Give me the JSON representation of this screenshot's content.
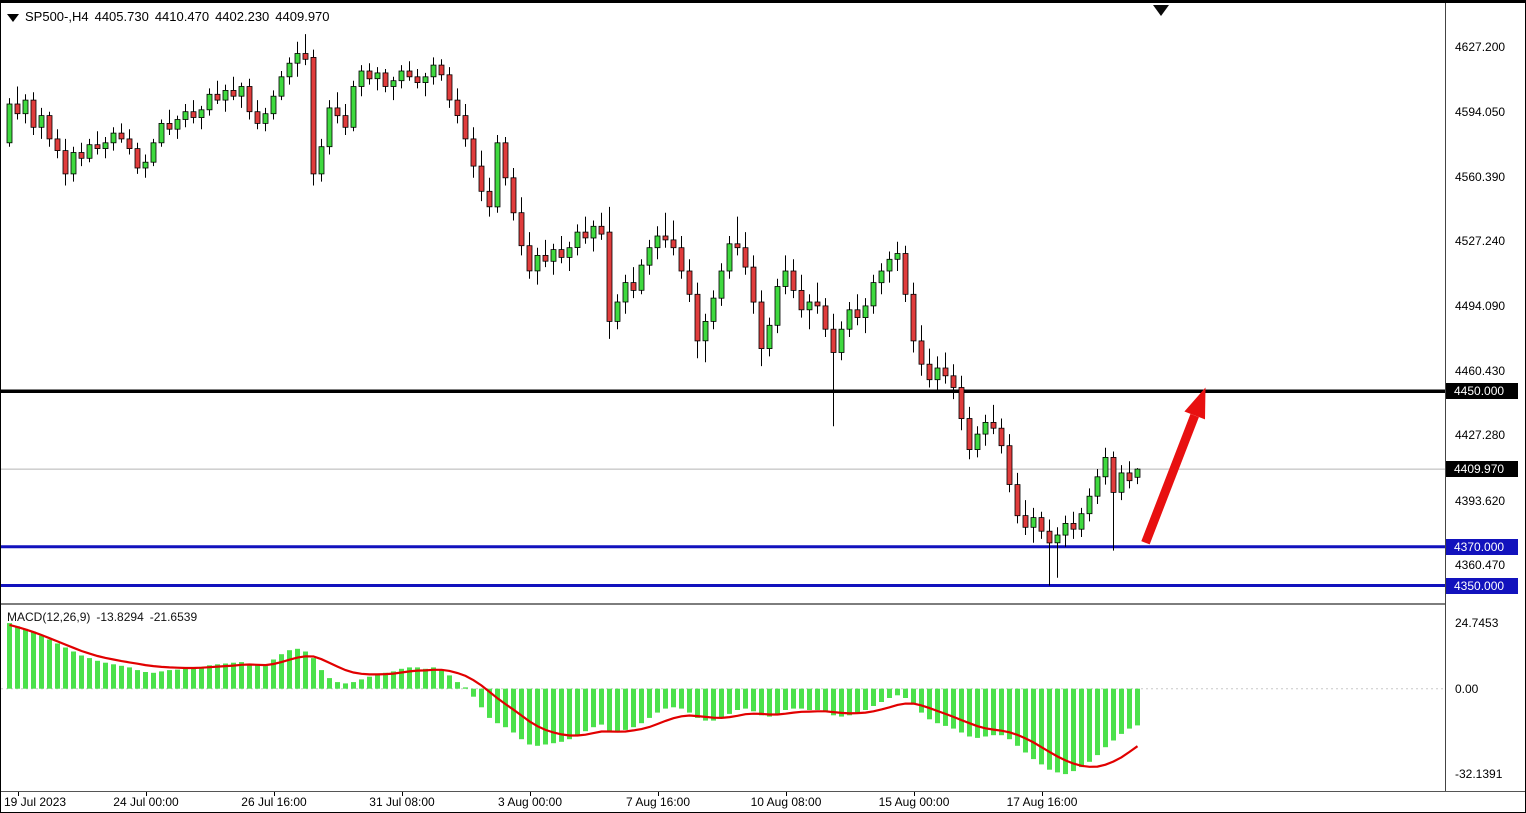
{
  "header": {
    "symbol_period": "SP500-,H4",
    "open": "4405.730",
    "high": "4410.470",
    "low": "4402.230",
    "close": "4409.970"
  },
  "macd_header": {
    "name": "MACD(12,26,9)",
    "main_value": "-13.8294",
    "signal_value": "-21.6539"
  },
  "colors": {
    "background": "#ffffff",
    "up": "#3fd93f",
    "down": "#e03c3c",
    "wick": "#000000",
    "candle_border": "#000000",
    "histogram": "#4be14b",
    "signal": "#e10000",
    "arrow": "#e81010",
    "hline_black": "#000000",
    "hline_blue": "#1212bd",
    "current_price_line": "#b5b5b5",
    "badge_black_bg": "#000000",
    "badge_blue_bg": "#1212bd",
    "badge_text": "#ffffff",
    "axis_text": "#000000"
  },
  "chart_data": [
    {
      "type": "candlestick",
      "title": "SP500- H4",
      "ylim": [
        4341,
        4650
      ],
      "grid": false,
      "y_ticks": [
        {
          "value": 4627.2,
          "label": "4627.200"
        },
        {
          "value": 4594.05,
          "label": "4594.050"
        },
        {
          "value": 4560.39,
          "label": "4560.390"
        },
        {
          "value": 4527.24,
          "label": "4527.240"
        },
        {
          "value": 4494.09,
          "label": "4494.090"
        },
        {
          "value": 4460.43,
          "label": "4460.430"
        },
        {
          "value": 4427.28,
          "label": "4427.280"
        },
        {
          "value": 4393.62,
          "label": "4393.620"
        },
        {
          "value": 4360.47,
          "label": "4360.470"
        }
      ],
      "x_ticks": [
        {
          "index": 1,
          "label": "19 Jul 2023"
        },
        {
          "index": 17,
          "label": "24 Jul 00:00"
        },
        {
          "index": 33,
          "label": "26 Jul 16:00"
        },
        {
          "index": 49,
          "label": "31 Jul 08:00"
        },
        {
          "index": 65,
          "label": "3 Aug 00:00"
        },
        {
          "index": 81,
          "label": "7 Aug 16:00"
        },
        {
          "index": 97,
          "label": "10 Aug 08:00"
        },
        {
          "index": 113,
          "label": "15 Aug 00:00"
        },
        {
          "index": 129,
          "label": "17 Aug 16:00"
        }
      ],
      "hlines": [
        {
          "value": 4450,
          "color": "#000000",
          "width": 3.5,
          "badge": "4450.000",
          "badge_bg": "#000000"
        },
        {
          "value": 4370,
          "color": "#1212bd",
          "width": 3,
          "badge": "4370.000",
          "badge_bg": "#1212bd"
        },
        {
          "value": 4350,
          "color": "#1212bd",
          "width": 3,
          "badge": "4350.000",
          "badge_bg": "#1212bd"
        }
      ],
      "price_marker": {
        "value": 4409.97,
        "badge": "4409.970",
        "badge_bg": "#000000"
      },
      "arrow": {
        "from": {
          "index": 142,
          "price": 4372
        },
        "to": {
          "index": 149.5,
          "price": 4452
        }
      },
      "ohlc": [
        [
          4578,
          4601,
          4576,
          4598
        ],
        [
          4598,
          4607,
          4590,
          4593
        ],
        [
          4593,
          4603,
          4588,
          4600
        ],
        [
          4600,
          4604,
          4582,
          4586
        ],
        [
          4586,
          4596,
          4580,
          4592
        ],
        [
          4592,
          4594,
          4576,
          4580
        ],
        [
          4580,
          4585,
          4570,
          4574
        ],
        [
          4574,
          4580,
          4556,
          4562
        ],
        [
          4562,
          4576,
          4558,
          4573
        ],
        [
          4573,
          4578,
          4566,
          4570
        ],
        [
          4570,
          4580,
          4568,
          4577
        ],
        [
          4577,
          4584,
          4572,
          4575
        ],
        [
          4575,
          4581,
          4570,
          4578
        ],
        [
          4578,
          4586,
          4574,
          4583
        ],
        [
          4583,
          4588,
          4578,
          4580
        ],
        [
          4580,
          4585,
          4572,
          4575
        ],
        [
          4575,
          4578,
          4562,
          4565
        ],
        [
          4565,
          4572,
          4560,
          4568
        ],
        [
          4568,
          4580,
          4566,
          4578
        ],
        [
          4578,
          4590,
          4576,
          4588
        ],
        [
          4588,
          4595,
          4582,
          4585
        ],
        [
          4585,
          4592,
          4580,
          4590
        ],
        [
          4590,
          4598,
          4586,
          4594
        ],
        [
          4594,
          4600,
          4588,
          4591
        ],
        [
          4591,
          4597,
          4585,
          4595
        ],
        [
          4595,
          4606,
          4592,
          4603
        ],
        [
          4603,
          4610,
          4598,
          4600
        ],
        [
          4600,
          4608,
          4594,
          4605
        ],
        [
          4605,
          4612,
          4600,
          4602
        ],
        [
          4602,
          4609,
          4596,
          4607
        ],
        [
          4607,
          4611,
          4590,
          4594
        ],
        [
          4594,
          4600,
          4585,
          4588
        ],
        [
          4588,
          4596,
          4584,
          4593
        ],
        [
          4593,
          4605,
          4590,
          4602
        ],
        [
          4602,
          4615,
          4600,
          4612
        ],
        [
          4612,
          4622,
          4608,
          4619
        ],
        [
          4619,
          4630,
          4612,
          4624
        ],
        [
          4624,
          4634,
          4618,
          4621
        ],
        [
          4622,
          4626,
          4556,
          4562
        ],
        [
          4562,
          4580,
          4558,
          4576
        ],
        [
          4576,
          4600,
          4572,
          4596
        ],
        [
          4596,
          4604,
          4588,
          4592
        ],
        [
          4592,
          4598,
          4582,
          4586
        ],
        [
          4586,
          4610,
          4584,
          4607
        ],
        [
          4607,
          4618,
          4602,
          4615
        ],
        [
          4615,
          4619,
          4608,
          4611
        ],
        [
          4611,
          4617,
          4605,
          4614
        ],
        [
          4614,
          4616,
          4604,
          4607
        ],
        [
          4607,
          4612,
          4600,
          4610
        ],
        [
          4610,
          4618,
          4606,
          4615
        ],
        [
          4615,
          4620,
          4610,
          4612
        ],
        [
          4612,
          4616,
          4606,
          4609
        ],
        [
          4609,
          4614,
          4602,
          4612
        ],
        [
          4612,
          4622,
          4608,
          4618
        ],
        [
          4618,
          4621,
          4610,
          4613
        ],
        [
          4613,
          4617,
          4596,
          4600
        ],
        [
          4600,
          4606,
          4588,
          4592
        ],
        [
          4592,
          4598,
          4576,
          4580
        ],
        [
          4580,
          4586,
          4560,
          4566
        ],
        [
          4566,
          4574,
          4548,
          4553
        ],
        [
          4553,
          4560,
          4540,
          4545
        ],
        [
          4545,
          4582,
          4542,
          4578
        ],
        [
          4578,
          4581,
          4556,
          4560
        ],
        [
          4560,
          4565,
          4538,
          4542
        ],
        [
          4542,
          4550,
          4520,
          4525
        ],
        [
          4525,
          4532,
          4508,
          4512
        ],
        [
          4512,
          4524,
          4505,
          4520
        ],
        [
          4520,
          4528,
          4514,
          4517
        ],
        [
          4517,
          4526,
          4510,
          4523
        ],
        [
          4523,
          4530,
          4516,
          4519
        ],
        [
          4519,
          4527,
          4512,
          4524
        ],
        [
          4524,
          4536,
          4520,
          4532
        ],
        [
          4532,
          4540,
          4526,
          4529
        ],
        [
          4529,
          4538,
          4522,
          4535
        ],
        [
          4535,
          4542,
          4528,
          4531
        ],
        [
          4532,
          4545,
          4477,
          4486
        ],
        [
          4486,
          4500,
          4482,
          4496
        ],
        [
          4496,
          4510,
          4490,
          4506
        ],
        [
          4506,
          4514,
          4498,
          4502
        ],
        [
          4502,
          4518,
          4500,
          4515
        ],
        [
          4515,
          4528,
          4510,
          4524
        ],
        [
          4524,
          4535,
          4518,
          4530
        ],
        [
          4530,
          4542,
          4524,
          4528
        ],
        [
          4528,
          4538,
          4520,
          4524
        ],
        [
          4524,
          4530,
          4508,
          4512
        ],
        [
          4512,
          4518,
          4496,
          4500
        ],
        [
          4500,
          4506,
          4467,
          4476
        ],
        [
          4476,
          4490,
          4465,
          4486
        ],
        [
          4486,
          4502,
          4482,
          4498
        ],
        [
          4498,
          4516,
          4494,
          4512
        ],
        [
          4512,
          4530,
          4508,
          4526
        ],
        [
          4526,
          4540,
          4520,
          4524
        ],
        [
          4524,
          4532,
          4510,
          4514
        ],
        [
          4514,
          4520,
          4490,
          4496
        ],
        [
          4496,
          4502,
          4463,
          4472
        ],
        [
          4472,
          4488,
          4468,
          4484
        ],
        [
          4484,
          4508,
          4480,
          4504
        ],
        [
          4504,
          4520,
          4500,
          4512
        ],
        [
          4512,
          4518,
          4498,
          4502
        ],
        [
          4502,
          4510,
          4488,
          4492
        ],
        [
          4492,
          4500,
          4482,
          4496
        ],
        [
          4496,
          4506,
          4490,
          4494
        ],
        [
          4494,
          4498,
          4478,
          4482
        ],
        [
          4482,
          4490,
          4432,
          4470
        ],
        [
          4470,
          4486,
          4466,
          4482
        ],
        [
          4482,
          4496,
          4478,
          4492
        ],
        [
          4492,
          4500,
          4484,
          4488
        ],
        [
          4488,
          4498,
          4480,
          4494
        ],
        [
          4494,
          4510,
          4490,
          4506
        ],
        [
          4506,
          4516,
          4500,
          4512
        ],
        [
          4512,
          4522,
          4506,
          4518
        ],
        [
          4518,
          4527,
          4512,
          4521
        ],
        [
          4521,
          4525,
          4496,
          4500
        ],
        [
          4500,
          4506,
          4470,
          4476
        ],
        [
          4476,
          4484,
          4458,
          4464
        ],
        [
          4464,
          4472,
          4452,
          4456
        ],
        [
          4456,
          4468,
          4450,
          4462
        ],
        [
          4462,
          4470,
          4454,
          4458
        ],
        [
          4458,
          4464,
          4446,
          4452
        ],
        [
          4452,
          4458,
          4430,
          4436
        ],
        [
          4436,
          4442,
          4415,
          4420
        ],
        [
          4420,
          4432,
          4416,
          4428
        ],
        [
          4428,
          4438,
          4422,
          4434
        ],
        [
          4434,
          4443,
          4428,
          4431
        ],
        [
          4431,
          4436,
          4418,
          4422
        ],
        [
          4422,
          4428,
          4398,
          4402
        ],
        [
          4402,
          4408,
          4382,
          4386
        ],
        [
          4386,
          4394,
          4376,
          4380
        ],
        [
          4380,
          4390,
          4372,
          4385
        ],
        [
          4385,
          4388,
          4374,
          4378
        ],
        [
          4378,
          4384,
          4350,
          4372
        ],
        [
          4372,
          4380,
          4354,
          4376
        ],
        [
          4376,
          4386,
          4370,
          4382
        ],
        [
          4382,
          4388,
          4374,
          4379
        ],
        [
          4379,
          4390,
          4375,
          4387
        ],
        [
          4387,
          4400,
          4383,
          4396
        ],
        [
          4396,
          4410,
          4392,
          4406
        ],
        [
          4406,
          4421,
          4402,
          4416
        ],
        [
          4416,
          4419,
          4368,
          4398
        ],
        [
          4398,
          4412,
          4394,
          4408
        ],
        [
          4408,
          4414,
          4400,
          4404
        ],
        [
          4405.73,
          4410.47,
          4402.23,
          4409.97
        ]
      ]
    },
    {
      "type": "bar",
      "name": "MACD(12,26,9)",
      "ylim": [
        -38.5,
        31.5
      ],
      "y_ticks": [
        {
          "value": 24.7453,
          "label": "24.7453"
        },
        {
          "value": 0,
          "label": "0.00"
        },
        {
          "value": -32.1391,
          "label": "-32.1391"
        }
      ],
      "histogram": [
        24.7,
        23.5,
        22.5,
        21.5,
        20,
        18.5,
        17,
        15.5,
        14,
        12.5,
        11.5,
        10.5,
        9.8,
        9.2,
        8.6,
        8,
        7,
        6.3,
        6,
        6.5,
        7,
        7.2,
        7.5,
        7.8,
        8.2,
        8.8,
        9.2,
        9.5,
        9.8,
        10,
        9.5,
        8.8,
        8.5,
        11,
        13,
        14.5,
        15,
        14,
        11.5,
        7,
        4,
        2.5,
        2,
        2.5,
        3.5,
        4.5,
        5.5,
        6,
        6.5,
        7.5,
        8,
        8,
        7.5,
        8,
        7,
        5,
        2.5,
        0.5,
        -3,
        -7,
        -11,
        -13,
        -14.5,
        -16.5,
        -19,
        -21,
        -21.5,
        -21,
        -20.5,
        -20,
        -19,
        -17.5,
        -16,
        -14.5,
        -13.5,
        -16,
        -16.5,
        -15.5,
        -14.5,
        -13,
        -11,
        -9,
        -7.5,
        -7,
        -7.5,
        -9,
        -11,
        -12,
        -12,
        -11,
        -9.5,
        -8,
        -7.5,
        -8.5,
        -10,
        -10.5,
        -9.5,
        -8,
        -7.5,
        -7.5,
        -8,
        -8,
        -8.5,
        -10,
        -10.5,
        -10,
        -9,
        -8,
        -6.5,
        -5,
        -3.5,
        -2.5,
        -3.5,
        -6,
        -9,
        -11.5,
        -13,
        -14,
        -15,
        -16.5,
        -18,
        -18.5,
        -18,
        -17.5,
        -17.5,
        -19,
        -21.5,
        -24,
        -26.5,
        -28.5,
        -30.5,
        -31.5,
        -32.14,
        -31,
        -29.5,
        -27.5,
        -25,
        -22,
        -19.5,
        -17,
        -15,
        -13.83
      ],
      "signal": [
        24,
        23.2,
        22.3,
        21.3,
        20.2,
        19,
        17.8,
        16.6,
        15.4,
        14.2,
        13.2,
        12.3,
        11.6,
        11,
        10.4,
        9.9,
        9.4,
        8.9,
        8.5,
        8.2,
        8,
        7.9,
        7.8,
        7.8,
        7.9,
        8.1,
        8.3,
        8.5,
        8.7,
        9,
        9.1,
        9,
        8.9,
        9.3,
        10,
        10.9,
        11.7,
        12.2,
        12.1,
        11.1,
        9.7,
        8.3,
        7,
        6.1,
        5.6,
        5.4,
        5.4,
        5.5,
        5.7,
        6.1,
        6.5,
        6.8,
        6.9,
        7.1,
        7.1,
        6.7,
        5.9,
        4.8,
        3.2,
        1.2,
        -1.2,
        -3.6,
        -5.8,
        -7.9,
        -10.1,
        -12.3,
        -14.1,
        -15.5,
        -16.5,
        -17.2,
        -17.6,
        -17.6,
        -17.3,
        -16.7,
        -16.1,
        -16.1,
        -16.2,
        -16.1,
        -15.7,
        -15.2,
        -14.4,
        -13.3,
        -12.1,
        -11.1,
        -10.4,
        -10.1,
        -10.3,
        -10.6,
        -10.9,
        -11,
        -10.7,
        -10.2,
        -9.6,
        -9.4,
        -9.5,
        -9.7,
        -9.7,
        -9.4,
        -9,
        -8.7,
        -8.6,
        -8.5,
        -8.5,
        -8.8,
        -9.1,
        -9.3,
        -9.2,
        -9,
        -8.5,
        -7.8,
        -7,
        -6.1,
        -5.6,
        -5.6,
        -6.3,
        -7.3,
        -8.4,
        -9.5,
        -10.6,
        -11.8,
        -13,
        -14.1,
        -14.9,
        -15.4,
        -15.8,
        -16.4,
        -17.4,
        -18.7,
        -20.2,
        -22,
        -23.8,
        -25.5,
        -27,
        -28.2,
        -29,
        -29.4,
        -29.3,
        -28.6,
        -27.4,
        -25.8,
        -23.8,
        -21.65
      ]
    }
  ]
}
